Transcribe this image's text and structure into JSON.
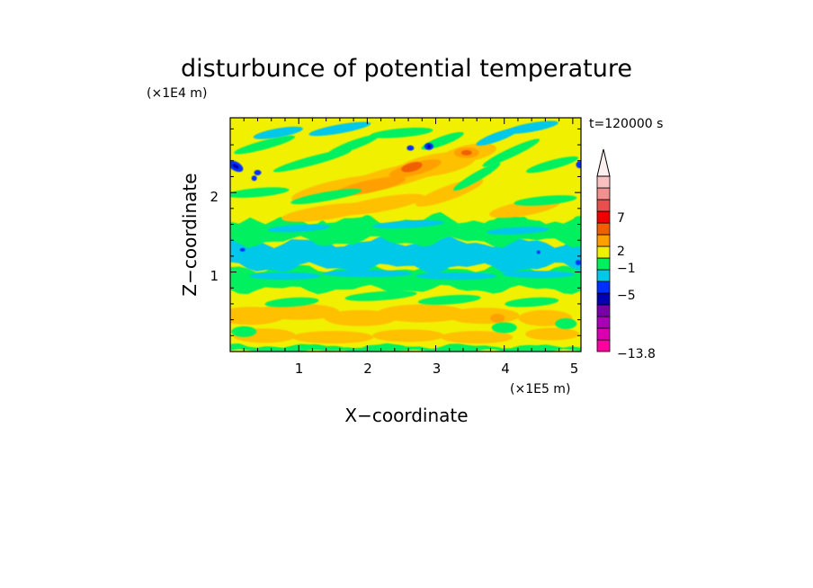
{
  "chart_data": {
    "type": "heatmap",
    "title": "disturbunce of potential temperature",
    "xlabel": "X−coordinate",
    "ylabel": "Z−coordinate",
    "x_unit_label": "(×1E5 m)",
    "y_unit_label": "(×1E4 m)",
    "time_label": "t=120000 s",
    "xlim": [
      0,
      5.12
    ],
    "ylim": [
      0,
      2.94
    ],
    "x_ticks": [
      "1",
      "2",
      "3",
      "4",
      "5"
    ],
    "y_ticks": [
      "1",
      "2"
    ],
    "colorbar": {
      "labels": [
        "7",
        "2",
        "−1",
        "−5",
        "−13.8"
      ],
      "colors": [
        "#ff00a0",
        "#d800b0",
        "#a800b8",
        "#7800a8",
        "#0000b0",
        "#0030ff",
        "#00c8e8",
        "#00f060",
        "#f0f000",
        "#ffa000",
        "#f06000",
        "#f00000",
        "#e85050",
        "#f09090",
        "#f8c0c0"
      ],
      "triangle_color": "#fff0f0"
    },
    "bands": [
      {
        "z": [
          0.0,
          0.05
        ],
        "level": "green"
      },
      {
        "z": [
          0.05,
          0.35
        ],
        "level": "yellow-light-orange"
      },
      {
        "z": [
          0.35,
          0.55
        ],
        "level": "yellow"
      },
      {
        "z": [
          0.55,
          0.75
        ],
        "level": "yellow-light-orange"
      },
      {
        "z": [
          0.75,
          0.85
        ],
        "level": "green"
      },
      {
        "z": [
          0.85,
          1.05
        ],
        "level": "green"
      },
      {
        "z": [
          1.05,
          1.35
        ],
        "level": "cyan"
      },
      {
        "z": [
          1.35,
          1.7
        ],
        "level": "green"
      },
      {
        "z": [
          1.7,
          2.0
        ],
        "level": "yellow-orange"
      },
      {
        "z": [
          2.0,
          2.94
        ],
        "level": "mixed"
      }
    ]
  }
}
